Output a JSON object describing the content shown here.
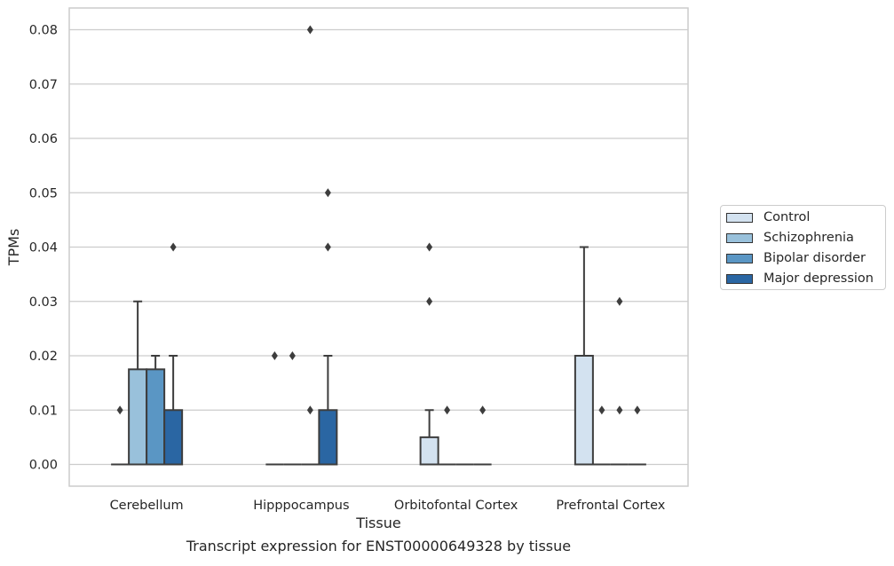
{
  "caption": "Transcript expression for ENST00000649328 by tissue",
  "chart_data": {
    "type": "box",
    "title": "",
    "xlabel": "Tissue",
    "ylabel": "TPMs",
    "ylim": [
      -0.004,
      0.084
    ],
    "yticks": [
      0.0,
      0.01,
      0.02,
      0.03,
      0.04,
      0.05,
      0.06,
      0.07,
      0.08
    ],
    "ytick_labels": [
      "0.00",
      "0.01",
      "0.02",
      "0.03",
      "0.04",
      "0.05",
      "0.06",
      "0.07",
      "0.08"
    ],
    "grid": "horizontal",
    "legend_position": "right",
    "categories": [
      "Cerebellum",
      "Hipppocampus",
      "Orbitofontal Cortex",
      "Prefrontal Cortex"
    ],
    "series": [
      {
        "name": "Control",
        "color": "#d3e2f0",
        "boxes": [
          {
            "q1": 0,
            "median": 0,
            "q3": 0,
            "whisker_low": 0,
            "whisker_high": 0,
            "fliers": [
              0.01
            ]
          },
          {
            "q1": 0,
            "median": 0,
            "q3": 0,
            "whisker_low": 0,
            "whisker_high": 0,
            "fliers": [
              0.02
            ]
          },
          {
            "q1": 0,
            "median": 0,
            "q3": 0.005,
            "whisker_low": 0,
            "whisker_high": 0.01,
            "fliers": [
              0.03,
              0.04
            ]
          },
          {
            "q1": 0,
            "median": 0,
            "q3": 0.02,
            "whisker_low": 0,
            "whisker_high": 0.04,
            "fliers": []
          }
        ]
      },
      {
        "name": "Schizophrenia",
        "color": "#99c1db",
        "boxes": [
          {
            "q1": 0,
            "median": 0,
            "q3": 0.0175,
            "whisker_low": 0,
            "whisker_high": 0.03,
            "fliers": []
          },
          {
            "q1": 0,
            "median": 0,
            "q3": 0,
            "whisker_low": 0,
            "whisker_high": 0,
            "fliers": [
              0.02
            ]
          },
          {
            "q1": 0,
            "median": 0,
            "q3": 0,
            "whisker_low": 0,
            "whisker_high": 0,
            "fliers": [
              0.01
            ]
          },
          {
            "q1": 0,
            "median": 0,
            "q3": 0,
            "whisker_low": 0,
            "whisker_high": 0,
            "fliers": [
              0.01
            ]
          }
        ]
      },
      {
        "name": "Bipolar disorder",
        "color": "#5a96c4",
        "boxes": [
          {
            "q1": 0,
            "median": 0,
            "q3": 0.0175,
            "whisker_low": 0,
            "whisker_high": 0.02,
            "fliers": []
          },
          {
            "q1": 0,
            "median": 0,
            "q3": 0,
            "whisker_low": 0,
            "whisker_high": 0,
            "fliers": [
              0.01,
              0.08
            ]
          },
          {
            "q1": 0,
            "median": 0,
            "q3": 0,
            "whisker_low": 0,
            "whisker_high": 0,
            "fliers": []
          },
          {
            "q1": 0,
            "median": 0,
            "q3": 0,
            "whisker_low": 0,
            "whisker_high": 0,
            "fliers": [
              0.01,
              0.03
            ]
          }
        ]
      },
      {
        "name": "Major depression",
        "color": "#2a66a3",
        "boxes": [
          {
            "q1": 0,
            "median": 0,
            "q3": 0.01,
            "whisker_low": 0,
            "whisker_high": 0.02,
            "fliers": [
              0.04
            ]
          },
          {
            "q1": 0,
            "median": 0,
            "q3": 0.01,
            "whisker_low": 0,
            "whisker_high": 0.02,
            "fliers": [
              0.04,
              0.05
            ]
          },
          {
            "q1": 0,
            "median": 0,
            "q3": 0,
            "whisker_low": 0,
            "whisker_high": 0,
            "fliers": [
              0.01
            ]
          },
          {
            "q1": 0,
            "median": 0,
            "q3": 0,
            "whisker_low": 0,
            "whisker_high": 0,
            "fliers": [
              0.01
            ]
          }
        ]
      }
    ]
  }
}
